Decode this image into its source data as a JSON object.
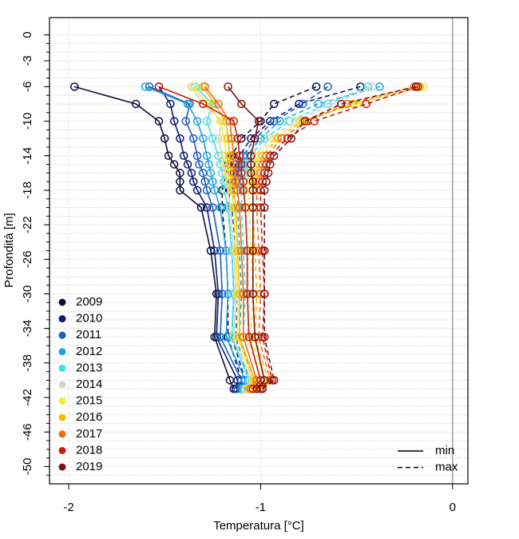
{
  "chart_data": {
    "type": "line",
    "xlabel": "Temperatura [°C]",
    "ylabel": "Profondità [m]",
    "xlim": [
      -2.1,
      0.08
    ],
    "xticks": [
      -2,
      -1,
      0
    ],
    "ylim": [
      -52,
      2
    ],
    "yticks": [
      0,
      -3,
      -6,
      -10,
      -14,
      -18,
      -22,
      -26,
      -30,
      -34,
      -38,
      -42,
      -46,
      -50
    ],
    "yminorticks": [
      0,
      -1,
      -2,
      -3,
      -4,
      -5,
      -6,
      -7,
      -8,
      -9,
      -10,
      -11,
      -12,
      -13,
      -14,
      -15,
      -16,
      -17,
      -18,
      -19,
      -20,
      -21,
      -22,
      -23,
      -24,
      -25,
      -26,
      -27,
      -28,
      -29,
      -30,
      -31,
      -32,
      -33,
      -34,
      -35,
      -36,
      -37,
      -38,
      -39,
      -40,
      -41,
      -42,
      -43,
      -44,
      -45,
      -46,
      -47,
      -48,
      -49,
      -50,
      -51
    ],
    "grid": true,
    "legend": "bottom-left",
    "depths": [
      -6,
      -8,
      -10,
      -12,
      -14,
      -15,
      -16,
      -17,
      -18,
      -20,
      -25,
      -30,
      -35,
      -40,
      -41
    ],
    "line_styles": [
      {
        "label": "min",
        "dash": "solid"
      },
      {
        "label": "max",
        "dash": "dashed"
      }
    ],
    "series": [
      {
        "name": "2009",
        "color": "#0e0e3c",
        "min": [
          -1.97,
          -1.65,
          -1.53,
          -1.5,
          -1.48,
          -1.45,
          -1.42,
          -1.42,
          -1.42,
          -1.31,
          -1.26,
          -1.23,
          -1.24,
          -1.16,
          -1.14
        ],
        "max": [
          -0.71,
          -0.93,
          -1.0,
          -1.1,
          -1.15,
          -1.17,
          -1.18,
          -1.19,
          -1.2,
          -1.2,
          -1.18,
          -1.17,
          -1.17,
          -1.1,
          -1.1
        ]
      },
      {
        "name": "2010",
        "color": "#0c1c72",
        "min": [
          -1.53,
          -1.47,
          -1.45,
          -1.42,
          -1.4,
          -1.38,
          -1.36,
          -1.35,
          -1.33,
          -1.28,
          -1.24,
          -1.22,
          -1.23,
          -1.12,
          -1.13
        ],
        "max": [
          -0.48,
          -0.8,
          -0.95,
          -1.05,
          -1.11,
          -1.13,
          -1.14,
          -1.15,
          -1.16,
          -1.17,
          -1.15,
          -1.14,
          -1.15,
          -1.08,
          -1.09
        ]
      },
      {
        "name": "2011",
        "color": "#1a5cbf",
        "min": [
          -1.58,
          -1.37,
          -1.39,
          -1.35,
          -1.33,
          -1.32,
          -1.3,
          -1.29,
          -1.28,
          -1.25,
          -1.21,
          -1.2,
          -1.21,
          -1.1,
          -1.12
        ],
        "max": [
          -0.65,
          -0.78,
          -0.93,
          -1.03,
          -1.09,
          -1.11,
          -1.12,
          -1.13,
          -1.14,
          -1.15,
          -1.13,
          -1.12,
          -1.13,
          -1.06,
          -1.08
        ]
      },
      {
        "name": "2012",
        "color": "#1ea2e2",
        "min": [
          -1.6,
          -1.38,
          -1.33,
          -1.3,
          -1.28,
          -1.27,
          -1.26,
          -1.25,
          -1.24,
          -1.21,
          -1.18,
          -1.17,
          -1.18,
          -1.08,
          -1.1
        ],
        "max": [
          -0.38,
          -0.7,
          -0.9,
          -1.0,
          -1.07,
          -1.09,
          -1.1,
          -1.11,
          -1.12,
          -1.12,
          -1.11,
          -1.1,
          -1.11,
          -1.04,
          -1.06
        ]
      },
      {
        "name": "2013",
        "color": "#40e0e4",
        "min": [
          -1.34,
          -1.25,
          -1.28,
          -1.25,
          -1.22,
          -1.21,
          -1.2,
          -1.19,
          -1.19,
          -1.17,
          -1.15,
          -1.14,
          -1.15,
          -1.06,
          -1.09
        ],
        "max": [
          -0.44,
          -0.65,
          -0.85,
          -0.98,
          -1.05,
          -1.07,
          -1.08,
          -1.09,
          -1.1,
          -1.1,
          -1.09,
          -1.08,
          -1.09,
          -1.02,
          -1.05
        ]
      },
      {
        "name": "2014",
        "color": "#d2d2d2",
        "min": [
          -1.36,
          -1.3,
          -1.2,
          -1.22,
          -1.2,
          -1.19,
          -1.18,
          -1.18,
          -1.17,
          -1.16,
          -1.14,
          -1.13,
          -1.14,
          -1.05,
          -1.08
        ],
        "max": [
          -0.42,
          -0.62,
          -0.82,
          -0.95,
          -1.03,
          -1.05,
          -1.06,
          -1.07,
          -1.08,
          -1.08,
          -1.07,
          -1.06,
          -1.07,
          -1.0,
          -1.04
        ]
      },
      {
        "name": "2015",
        "color": "#f2ee2e",
        "min": [
          -1.35,
          -1.28,
          -1.21,
          -1.19,
          -1.18,
          -1.18,
          -1.17,
          -1.16,
          -1.15,
          -1.14,
          -1.13,
          -1.12,
          -1.12,
          -1.04,
          -1.07
        ],
        "max": [
          -0.15,
          -0.5,
          -0.8,
          -0.93,
          -1.01,
          -1.03,
          -1.04,
          -1.05,
          -1.06,
          -1.06,
          -1.05,
          -1.04,
          -1.05,
          -0.98,
          -1.03
        ]
      },
      {
        "name": "2016",
        "color": "#f6b90c",
        "min": [
          -1.3,
          -1.24,
          -1.18,
          -1.17,
          -1.16,
          -1.16,
          -1.15,
          -1.14,
          -1.14,
          -1.13,
          -1.12,
          -1.11,
          -1.11,
          -1.03,
          -1.06
        ],
        "max": [
          -0.17,
          -0.52,
          -0.78,
          -0.91,
          -0.99,
          -1.01,
          -1.02,
          -1.03,
          -1.04,
          -1.04,
          -1.03,
          -1.02,
          -1.03,
          -0.96,
          -1.02
        ]
      },
      {
        "name": "2017",
        "color": "#ee6e16",
        "min": [
          -1.29,
          -1.22,
          -1.16,
          -1.15,
          -1.14,
          -1.14,
          -1.13,
          -1.13,
          -1.12,
          -1.11,
          -1.1,
          -1.09,
          -1.09,
          -1.02,
          -1.05
        ],
        "max": [
          -0.2,
          -0.55,
          -0.76,
          -0.89,
          -0.97,
          -0.99,
          -1.0,
          -1.01,
          -1.02,
          -1.02,
          -1.01,
          -1.0,
          -1.01,
          -0.95,
          -1.01
        ]
      },
      {
        "name": "2018",
        "color": "#cc1e06",
        "min": [
          -1.53,
          -1.3,
          -1.14,
          -1.12,
          -1.11,
          -1.1,
          -1.1,
          -1.09,
          -1.09,
          -1.08,
          -1.07,
          -1.07,
          -1.06,
          -1.0,
          -1.04
        ],
        "max": [
          -0.18,
          -0.45,
          -0.72,
          -0.86,
          -0.95,
          -0.97,
          -0.98,
          -0.99,
          -1.0,
          -1.0,
          -0.99,
          -0.98,
          -0.99,
          -0.94,
          -1.0
        ]
      },
      {
        "name": "2019",
        "color": "#7e1212",
        "min": [
          -1.17,
          -1.1,
          -1.01,
          -1.03,
          -1.05,
          -1.05,
          -1.05,
          -1.04,
          -1.04,
          -1.04,
          -1.04,
          -1.04,
          -1.03,
          -0.98,
          -1.02
        ],
        "max": [
          -0.19,
          -0.58,
          -0.77,
          -0.84,
          -0.93,
          -0.95,
          -0.96,
          -0.97,
          -0.98,
          -0.98,
          -0.98,
          -0.98,
          -0.98,
          -0.93,
          -0.99
        ]
      }
    ]
  }
}
